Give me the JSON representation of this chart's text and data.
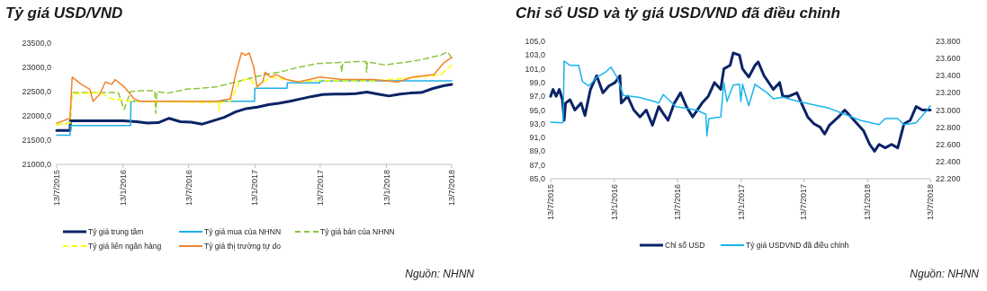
{
  "chart_data": [
    {
      "type": "line",
      "title": "Tỷ giá USD/VND",
      "annotations": [
        "Nguồn: NHNN"
      ],
      "legend": "bottom",
      "xlim": [
        "2015-07-13",
        "2018-07-13"
      ],
      "xticks": [
        {
          "value": "2015-07-13",
          "label": "13/7/2015"
        },
        {
          "value": "2016-01-13",
          "label": "13/1/2016"
        },
        {
          "value": "2016-07-13",
          "label": "13/7/2016"
        },
        {
          "value": "2017-01-13",
          "label": "13/1/2017"
        },
        {
          "value": "2017-07-13",
          "label": "13/7/2017"
        },
        {
          "value": "2018-01-13",
          "label": "13/1/2018"
        },
        {
          "value": "2018-07-13",
          "label": "13/7/2018"
        }
      ],
      "ylim": [
        21000,
        23500
      ],
      "yticks": [
        {
          "value": 21000,
          "label": "21000,0"
        },
        {
          "value": 21500,
          "label": "21500,0"
        },
        {
          "value": 22000,
          "label": "22000,0"
        },
        {
          "value": 22500,
          "label": "22500,0"
        },
        {
          "value": 23000,
          "label": "23000,0"
        },
        {
          "value": 23500,
          "label": "23500,0"
        }
      ],
      "series": [
        {
          "name": "Tỷ giá trung tâm",
          "color": "#0b2366",
          "line_style": "solid",
          "x": [
            "2015-07-13",
            "2015-08-19",
            "2015-08-20",
            "2015-12-31",
            "2016-01-13",
            "2016-02-20",
            "2016-03-20",
            "2016-04-20",
            "2016-05-20",
            "2016-06-20",
            "2016-07-20",
            "2016-08-20",
            "2016-09-20",
            "2016-10-20",
            "2016-11-20",
            "2016-12-20",
            "2017-01-20",
            "2017-02-20",
            "2017-03-20",
            "2017-04-20",
            "2017-05-20",
            "2017-06-20",
            "2017-07-20",
            "2017-08-20",
            "2017-09-20",
            "2017-10-20",
            "2017-11-20",
            "2017-12-20",
            "2018-01-20",
            "2018-02-20",
            "2018-03-20",
            "2018-04-20",
            "2018-05-20",
            "2018-06-20",
            "2018-07-13"
          ],
          "values": [
            21700,
            21700,
            21900,
            21900,
            21900,
            21880,
            21850,
            21860,
            21950,
            21880,
            21870,
            21830,
            21900,
            21970,
            22080,
            22150,
            22180,
            22230,
            22260,
            22300,
            22350,
            22400,
            22440,
            22450,
            22450,
            22460,
            22490,
            22450,
            22410,
            22450,
            22470,
            22480,
            22560,
            22620,
            22650
          ]
        },
        {
          "name": "Tỷ giá mua của NHNN",
          "color": "#1eaee8",
          "line_style": "solid",
          "x": [
            "2015-07-13",
            "2015-08-19",
            "2015-08-20",
            "2016-02-03",
            "2016-02-04",
            "2017-01-12",
            "2017-01-13",
            "2017-04-12",
            "2017-04-13",
            "2017-07-12",
            "2017-07-13",
            "2018-07-13"
          ],
          "values": [
            21600,
            21600,
            21800,
            21800,
            22300,
            22300,
            22570,
            22570,
            22680,
            22680,
            22720,
            22720
          ]
        },
        {
          "name": "Tỷ giá bán của NHNN",
          "color": "#8cc63e",
          "line_style": "dashed",
          "x": [
            "2015-07-13",
            "2015-08-19",
            "2015-08-25",
            "2015-10-13",
            "2015-12-13",
            "2015-12-31",
            "2016-01-16",
            "2016-02-03",
            "2016-03-01",
            "2016-04-10",
            "2016-04-13",
            "2016-04-16",
            "2016-05-16",
            "2016-07-07",
            "2016-08-19",
            "2016-09-30",
            "2016-11-22",
            "2017-01-13",
            "2017-02-10",
            "2017-03-22",
            "2017-05-13",
            "2017-07-04",
            "2017-09-08",
            "2017-09-11",
            "2017-09-14",
            "2017-10-25",
            "2017-11-17",
            "2017-11-19",
            "2017-11-21",
            "2018-01-10",
            "2018-03-01",
            "2018-04-13",
            "2018-06-13",
            "2018-07-01",
            "2018-07-13"
          ],
          "values": [
            21820,
            21850,
            22480,
            22480,
            22480,
            22480,
            22130,
            22500,
            22520,
            22520,
            22050,
            22500,
            22470,
            22550,
            22570,
            22600,
            22700,
            22800,
            22850,
            22900,
            23000,
            23080,
            23100,
            22900,
            23100,
            23120,
            23120,
            22900,
            23110,
            23050,
            23100,
            23150,
            23250,
            23320,
            23200
          ]
        },
        {
          "name": "Tỷ giá liên ngân hàng",
          "color": "#ffff00",
          "line_style": "dashed",
          "x": [
            "2015-07-13",
            "2015-08-19",
            "2015-08-25",
            "2015-11-10",
            "2015-12-13",
            "2016-02-13",
            "2016-08-10",
            "2016-10-03",
            "2016-10-06",
            "2016-10-09",
            "2016-11-06",
            "2016-12-01",
            "2016-12-28",
            "2017-01-19",
            "2017-02-25",
            "2017-04-10",
            "2017-05-13",
            "2017-07-04",
            "2017-12-07",
            "2018-04-13",
            "2018-06-13",
            "2018-07-13"
          ],
          "values": [
            21820,
            21850,
            22450,
            22480,
            22350,
            22300,
            22280,
            22280,
            22100,
            22280,
            22300,
            22700,
            22780,
            22600,
            22800,
            22750,
            22700,
            22730,
            22720,
            22800,
            22850,
            23050
          ]
        },
        {
          "name": "Tỷ giá thị trường tự do",
          "color": "#f0832b",
          "line_style": "solid",
          "x": [
            "2015-07-13",
            "2015-08-19",
            "2015-08-25",
            "2015-09-19",
            "2015-10-13",
            "2015-10-22",
            "2015-11-10",
            "2015-11-25",
            "2015-12-13",
            "2015-12-22",
            "2016-01-16",
            "2016-02-13",
            "2016-03-01",
            "2016-09-30",
            "2016-11-06",
            "2016-11-22",
            "2016-12-07",
            "2016-12-19",
            "2016-12-28",
            "2017-01-10",
            "2017-01-19",
            "2017-02-04",
            "2017-02-10",
            "2017-02-25",
            "2017-03-13",
            "2017-04-10",
            "2017-05-13",
            "2017-07-13",
            "2017-09-11",
            "2017-12-07",
            "2018-02-13",
            "2018-03-28",
            "2018-05-25",
            "2018-06-22",
            "2018-07-13"
          ],
          "values": [
            21850,
            21950,
            22800,
            22650,
            22550,
            22300,
            22450,
            22700,
            22650,
            22750,
            22600,
            22350,
            22300,
            22300,
            22350,
            22900,
            23300,
            23250,
            23300,
            23000,
            22600,
            22700,
            22900,
            22800,
            22850,
            22750,
            22700,
            22800,
            22750,
            22750,
            22700,
            22800,
            22850,
            23100,
            23200
          ]
        }
      ]
    },
    {
      "type": "line",
      "title": "Chỉ số USD và tỷ giá USD/VND đã điều chỉnh",
      "annotations": [
        "Nguồn: NHNN"
      ],
      "legend": "bottom",
      "xlim": [
        "2015-07-13",
        "2018-07-13"
      ],
      "xticks": [
        {
          "value": "2015-07-13",
          "label": "13/7/2015"
        },
        {
          "value": "2016-01-13",
          "label": "13/1/2016"
        },
        {
          "value": "2016-07-13",
          "label": "13/7/2016"
        },
        {
          "value": "2017-01-13",
          "label": "13/1/2017"
        },
        {
          "value": "2017-07-13",
          "label": "13/7/2017"
        },
        {
          "value": "2018-01-13",
          "label": "13/1/2018"
        },
        {
          "value": "2018-07-13",
          "label": "13/7/2018"
        }
      ],
      "ylim": [
        85,
        105
      ],
      "yticks": [
        {
          "value": 85,
          "label": "85,0"
        },
        {
          "value": 87,
          "label": "87,0"
        },
        {
          "value": 89,
          "label": "89,0"
        },
        {
          "value": 91,
          "label": "91,0"
        },
        {
          "value": 93,
          "label": "93,0"
        },
        {
          "value": 95,
          "label": "95,0"
        },
        {
          "value": 97,
          "label": "97,0"
        },
        {
          "value": 99,
          "label": "99,0"
        },
        {
          "value": 101,
          "label": "101,0"
        },
        {
          "value": 103,
          "label": "103,0"
        },
        {
          "value": 105,
          "label": "105,0"
        }
      ],
      "y2lim": [
        22200,
        23800
      ],
      "y2ticks": [
        {
          "value": 22200,
          "label": "22.200"
        },
        {
          "value": 22400,
          "label": "22.400"
        },
        {
          "value": 22600,
          "label": "22.600"
        },
        {
          "value": 22800,
          "label": "22.800"
        },
        {
          "value": 23000,
          "label": "23.000"
        },
        {
          "value": 23200,
          "label": "23.200"
        },
        {
          "value": 23400,
          "label": "23.400"
        },
        {
          "value": 23600,
          "label": "23.600"
        },
        {
          "value": 23800,
          "label": "23.800"
        }
      ],
      "series": [
        {
          "name": "Chỉ số USD",
          "color": "#0b2366",
          "axis": "y",
          "x": [
            "2015-07-13",
            "2015-07-20",
            "2015-07-29",
            "2015-08-07",
            "2015-08-16",
            "2015-08-21",
            "2015-08-25",
            "2015-09-07",
            "2015-09-21",
            "2015-10-09",
            "2015-10-20",
            "2015-11-05",
            "2015-11-23",
            "2015-12-11",
            "2015-12-28",
            "2016-01-15",
            "2016-01-29",
            "2016-02-02",
            "2016-02-20",
            "2016-03-09",
            "2016-03-27",
            "2016-04-14",
            "2016-05-02",
            "2016-05-20",
            "2016-06-02",
            "2016-06-16",
            "2016-07-04",
            "2016-07-22",
            "2016-08-08",
            "2016-08-26",
            "2016-09-22",
            "2016-10-10",
            "2016-10-28",
            "2016-11-15",
            "2016-11-24",
            "2016-12-12",
            "2016-12-21",
            "2017-01-08",
            "2017-01-17",
            "2017-02-04",
            "2017-02-22",
            "2017-03-03",
            "2017-03-20",
            "2017-04-16",
            "2017-05-04",
            "2017-05-13",
            "2017-05-31",
            "2017-06-23",
            "2017-07-06",
            "2017-07-24",
            "2017-08-11",
            "2017-08-29",
            "2017-09-11",
            "2017-09-25",
            "2017-10-21",
            "2017-11-08",
            "2017-12-05",
            "2018-01-01",
            "2018-01-19",
            "2018-02-02",
            "2018-02-15",
            "2018-03-05",
            "2018-03-23",
            "2018-04-10",
            "2018-04-28",
            "2018-05-16",
            "2018-06-02",
            "2018-06-20",
            "2018-07-13"
          ],
          "values": [
            97,
            98,
            97,
            98,
            96.5,
            93.5,
            96,
            96.5,
            95,
            96,
            94.2,
            98,
            100,
            97.5,
            98.5,
            99,
            100,
            96,
            97,
            95,
            94,
            95,
            92.8,
            95.5,
            94.5,
            93.5,
            96,
            97.5,
            95.5,
            94,
            96,
            97,
            99,
            98,
            101,
            101.5,
            103.3,
            103,
            101,
            99.8,
            101.5,
            102,
            100,
            98,
            99,
            97,
            97,
            97.5,
            96,
            94,
            93,
            92.5,
            91.5,
            92.8,
            94,
            95,
            93.5,
            92,
            90,
            89,
            90,
            89.5,
            90,
            89.5,
            93,
            93.5,
            95.5,
            95,
            95
          ]
        },
        {
          "name": "Tỷ giá USDVND đã điều chỉnh",
          "color": "#18b4ea",
          "axis": "y2",
          "x": [
            "2015-07-13",
            "2015-08-14",
            "2015-08-18",
            "2015-08-21",
            "2015-09-07",
            "2015-10-02",
            "2015-10-13",
            "2015-10-31",
            "2015-11-23",
            "2015-12-18",
            "2016-01-03",
            "2016-01-21",
            "2016-02-08",
            "2016-03-23",
            "2016-05-08",
            "2016-05-20",
            "2016-06-02",
            "2016-07-09",
            "2016-09-06",
            "2016-10-03",
            "2016-10-06",
            "2016-10-12",
            "2016-11-15",
            "2016-11-24",
            "2016-12-03",
            "2016-12-21",
            "2017-01-08",
            "2017-01-12",
            "2017-01-17",
            "2017-02-04",
            "2017-02-22",
            "2017-03-29",
            "2017-04-16",
            "2017-05-13",
            "2017-06-27",
            "2017-09-25",
            "2017-11-08",
            "2017-12-23",
            "2018-02-15",
            "2018-03-05",
            "2018-04-10",
            "2018-04-28",
            "2018-06-02",
            "2018-07-04",
            "2018-07-13"
          ],
          "values": [
            22860,
            22850,
            22860,
            23570,
            23520,
            23520,
            23330,
            23280,
            23380,
            23440,
            23500,
            23380,
            23170,
            23150,
            23100,
            23080,
            23180,
            23040,
            23000,
            22950,
            22700,
            22900,
            22920,
            23320,
            23100,
            23290,
            23300,
            23100,
            23300,
            23050,
            23300,
            23200,
            23130,
            23150,
            23100,
            23020,
            22950,
            22880,
            22830,
            22900,
            22900,
            22830,
            22850,
            23000,
            23050
          ]
        }
      ]
    }
  ]
}
